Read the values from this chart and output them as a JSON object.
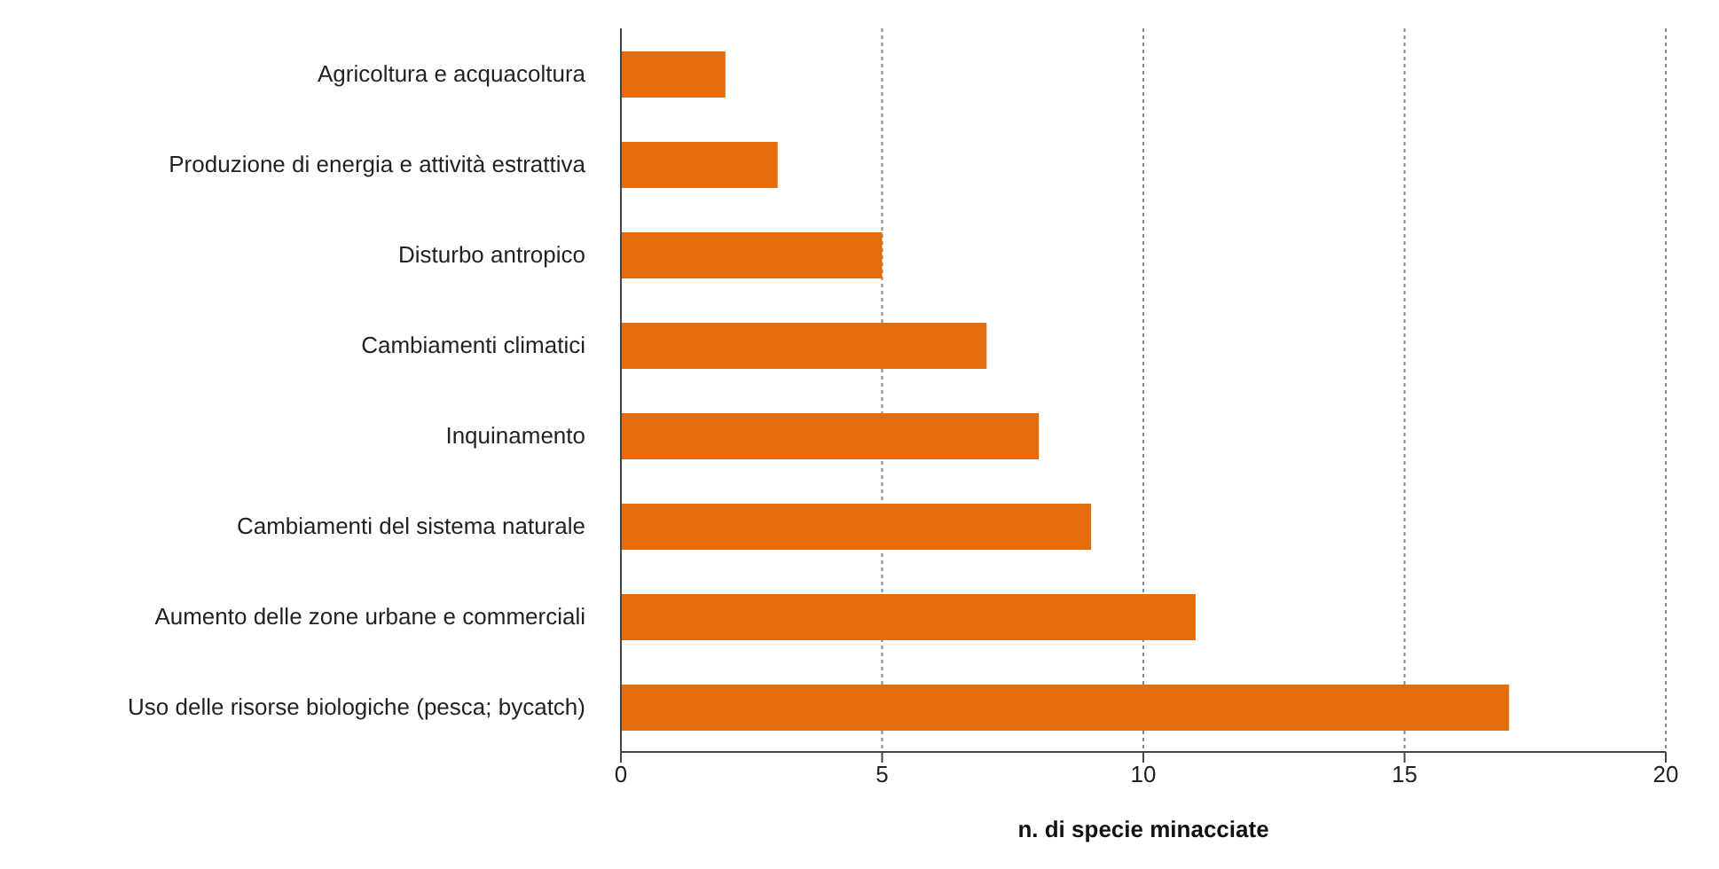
{
  "chart_data": {
    "type": "bar",
    "orientation": "horizontal",
    "categories": [
      "Agricoltura e acquacoltura",
      "Produzione di energia e attività estrattiva",
      "Disturbo antropico",
      "Cambiamenti climatici",
      "Inquinamento",
      "Cambiamenti del sistema naturale",
      "Aumento delle zone urbane e commerciali",
      "Uso delle risorse biologiche (pesca; bycatch)"
    ],
    "values": [
      2,
      3,
      5,
      7,
      8,
      9,
      11,
      17
    ],
    "color": "#e46c0a",
    "xlabel": "n. di specie minacciate",
    "xlim": [
      0,
      20
    ],
    "xticks": [
      0,
      5,
      10,
      15,
      20
    ],
    "grid": "x"
  }
}
